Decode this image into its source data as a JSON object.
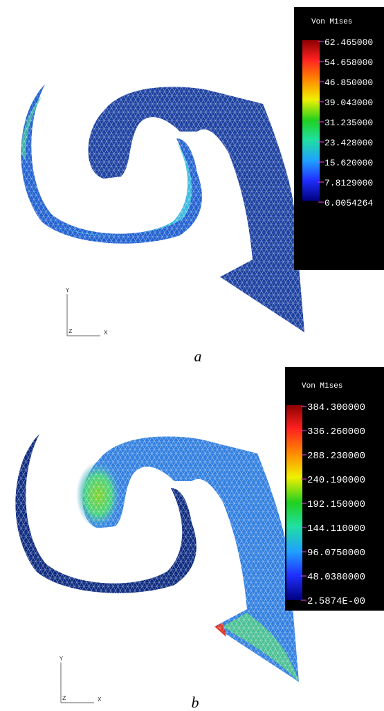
{
  "panels": [
    {
      "legend": {
        "title": "Von M1ses",
        "labels": [
          "62.465000",
          "54.658000",
          "46.850000",
          "39.043000",
          "31.235000",
          "23.428000",
          "15.620000",
          "7.8129000",
          "0.0054264"
        ]
      },
      "axes": {
        "y": "Y",
        "z": "Z",
        "x": "X"
      },
      "caption": "a"
    },
    {
      "legend": {
        "title": "Von M1ses",
        "labels": [
          "384.300000",
          "336.260000",
          "288.230000",
          "240.190000",
          "192.150000",
          "144.110000",
          "96.0750000",
          "48.0380000",
          "2.5874E-00"
        ]
      },
      "axes": {
        "y": "Y",
        "z": "Z",
        "x": "X"
      },
      "caption": "b"
    }
  ]
}
